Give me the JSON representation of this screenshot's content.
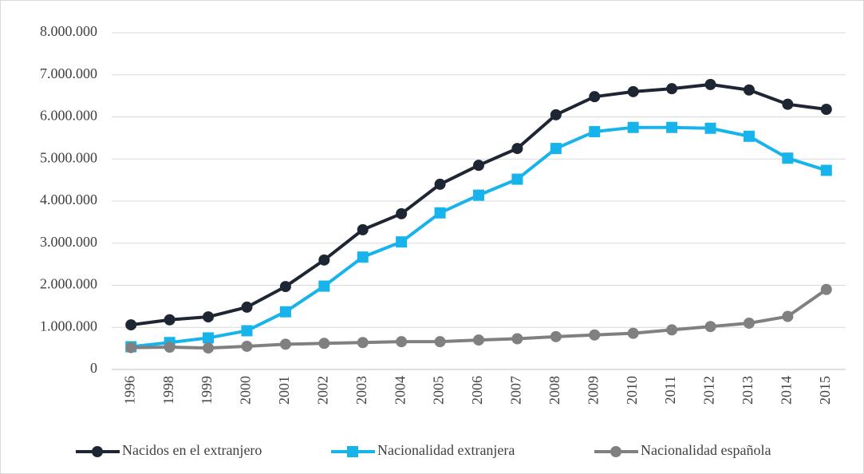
{
  "chart_data": {
    "type": "line",
    "categories": [
      "1996",
      "1998",
      "1999",
      "2000",
      "2001",
      "2002",
      "2003",
      "2004",
      "2005",
      "2006",
      "2007",
      "2008",
      "2009",
      "2010",
      "2011",
      "2012",
      "2013",
      "2014",
      "2015"
    ],
    "series": [
      {
        "name": "Nacidos en el extranjero",
        "color": "#1f2633",
        "marker": "circle",
        "values": [
          1060000,
          1180000,
          1250000,
          1480000,
          1970000,
          2600000,
          3320000,
          3700000,
          4400000,
          4850000,
          5250000,
          6050000,
          6480000,
          6600000,
          6670000,
          6770000,
          6640000,
          6300000,
          6180000
        ]
      },
      {
        "name": "Nacionalidad extranjera",
        "color": "#16b4ea",
        "marker": "square",
        "values": [
          540000,
          640000,
          750000,
          920000,
          1370000,
          1980000,
          2670000,
          3030000,
          3720000,
          4140000,
          4520000,
          5250000,
          5650000,
          5750000,
          5750000,
          5730000,
          5540000,
          5020000,
          4730000
        ]
      },
      {
        "name": "Nacionalidad española",
        "color": "#808080",
        "marker": "circle",
        "values": [
          520000,
          530000,
          510000,
          550000,
          600000,
          620000,
          640000,
          660000,
          660000,
          700000,
          730000,
          780000,
          820000,
          860000,
          940000,
          1020000,
          1100000,
          1260000,
          1900000
        ]
      }
    ],
    "ylim": [
      0,
      8000000
    ],
    "yticks": [
      0,
      {
        "value": 1000000,
        "label": "1.000.000"
      },
      {
        "value": 2000000,
        "label": "2.000.000"
      },
      {
        "value": 3000000,
        "label": "3.000.000"
      },
      {
        "value": 4000000,
        "label": "4.000.000"
      },
      {
        "value": 5000000,
        "label": "5.000.000"
      },
      {
        "value": 6000000,
        "label": "6.000.000"
      },
      {
        "value": 7000000,
        "label": "7.000.000"
      },
      {
        "value": 8000000,
        "label": "8.000.000"
      }
    ],
    "grid": true,
    "legend": "bottom"
  }
}
